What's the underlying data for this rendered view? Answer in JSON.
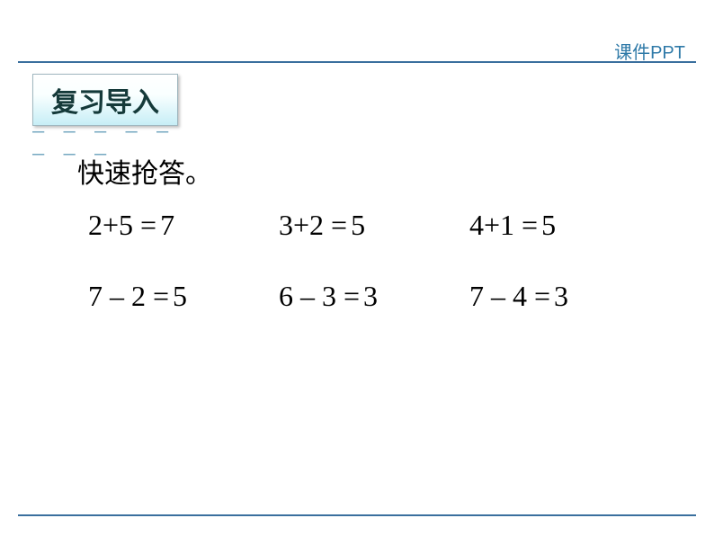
{
  "header": {
    "label": "课件PPT",
    "label_color": "#2f7aa8"
  },
  "rules": {
    "color": "#3a6f9e"
  },
  "title": {
    "text": "复习导入",
    "box_gradient_top": "#ffffff",
    "box_gradient_bottom": "#c7eef6",
    "text_color": "#153a3a"
  },
  "dashes": {
    "text": "– – – – – – – –",
    "color": "#77a9c2"
  },
  "subtitle": {
    "text": "快速抢答。"
  },
  "equations": {
    "rows": [
      [
        {
          "expr": "2+5 =",
          "ans": "7"
        },
        {
          "expr": "3+2 =",
          "ans": "5"
        },
        {
          "expr": "4+1 =",
          "ans": "5"
        }
      ],
      [
        {
          "expr": "7 – 2 =",
          "ans": "5"
        },
        {
          "expr": "6 – 3 =",
          "ans": "3"
        },
        {
          "expr": "7 – 4 =",
          "ans": "3"
        }
      ]
    ],
    "expr_color": "#000000",
    "ans_color": "#000000",
    "fontsize": 32
  }
}
